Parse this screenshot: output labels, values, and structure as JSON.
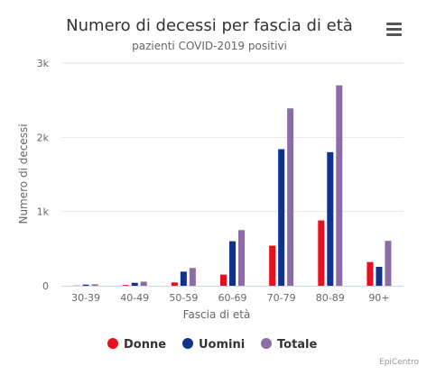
{
  "menu": {
    "icon": "hamburger-menu-icon"
  },
  "credits": "EpiCentro",
  "chart_data": {
    "type": "bar",
    "title": "Numero di decessi per fascia di età",
    "subtitle": "pazienti COVID-2019 positivi",
    "xlabel": "Fascia di età",
    "ylabel": "Numero di decessi",
    "categories": [
      "30-39",
      "40-49",
      "50-59",
      "60-69",
      "70-79",
      "80-89",
      "90+"
    ],
    "ylim": [
      0,
      3000
    ],
    "yticks": [
      0,
      1000,
      2000,
      3000
    ],
    "ytick_labels": [
      "0",
      "1k",
      "2k",
      "3k"
    ],
    "grid": true,
    "legend_position": "bottom-center",
    "series": [
      {
        "name": "Donne",
        "color": "#e8101e",
        "values": [
          3,
          10,
          45,
          150,
          540,
          880,
          320
        ]
      },
      {
        "name": "Uomini",
        "color": "#10328c",
        "values": [
          15,
          40,
          190,
          600,
          1840,
          1800,
          255
        ]
      },
      {
        "name": "Totale",
        "color": "#8c6ca5",
        "values": [
          20,
          55,
          240,
          750,
          2390,
          2700,
          605
        ]
      }
    ]
  }
}
